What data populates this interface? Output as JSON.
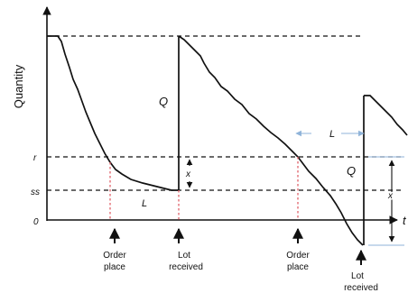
{
  "diagram": {
    "y_axis_label": "Quantity",
    "t_axis_label": "t",
    "level_labels": {
      "r": "r",
      "ss": "ss",
      "zero": "0"
    },
    "curve_labels": {
      "q_first": "Q",
      "q_second": "Q",
      "lead_time_first": "L",
      "lead_time_second": "L",
      "x_first": "x",
      "x_second": "x"
    },
    "events": [
      {
        "line1": "Order",
        "line2": "place"
      },
      {
        "line1": "Lot",
        "line2": "received"
      },
      {
        "line1": "Order",
        "line2": "place"
      },
      {
        "line1": "Lot",
        "line2": "received"
      }
    ],
    "colors": {
      "line": "#111111",
      "lead_time_marker": "#e0626a",
      "lead_time_arrow": "#8fb3d9"
    }
  }
}
